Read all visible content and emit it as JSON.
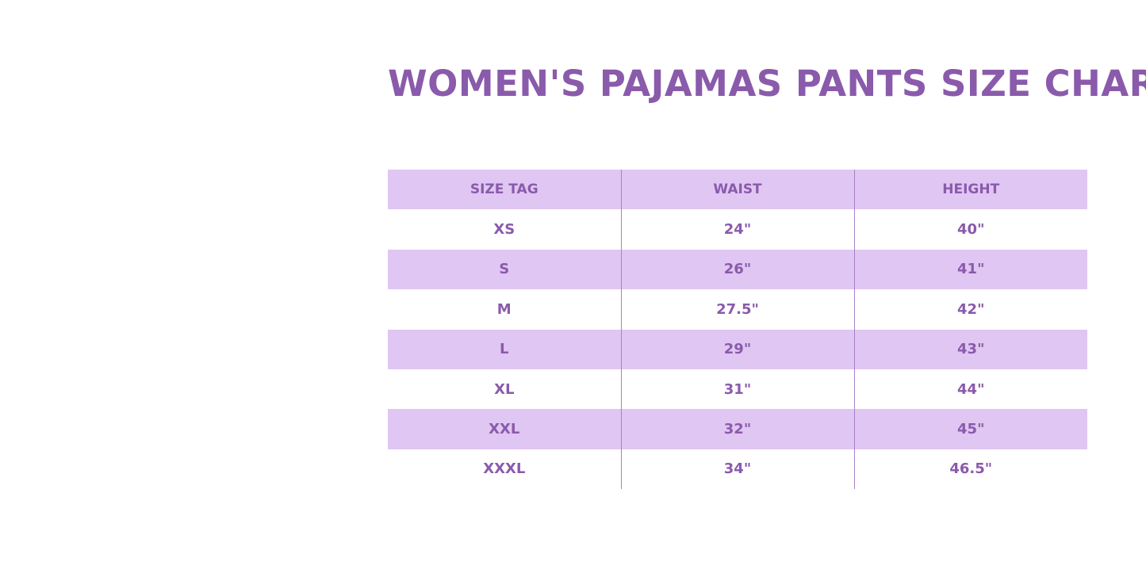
{
  "title": "WOMEN'S PAJAMAS PANTS SIZE CHART",
  "colors": {
    "text": "#8a5aab",
    "row_shade": "#e0c6f3"
  },
  "table": {
    "headers": [
      "SIZE TAG",
      "WAIST",
      "HEIGHT"
    ],
    "rows": [
      [
        "XS",
        "24\"",
        "40\""
      ],
      [
        "S",
        "26\"",
        "41\""
      ],
      [
        "M",
        "27.5\"",
        "42\""
      ],
      [
        "L",
        "29\"",
        "43\""
      ],
      [
        "XL",
        "31\"",
        "44\""
      ],
      [
        "XXL",
        "32\"",
        "45\""
      ],
      [
        "XXXL",
        "34\"",
        "46.5\""
      ]
    ]
  }
}
